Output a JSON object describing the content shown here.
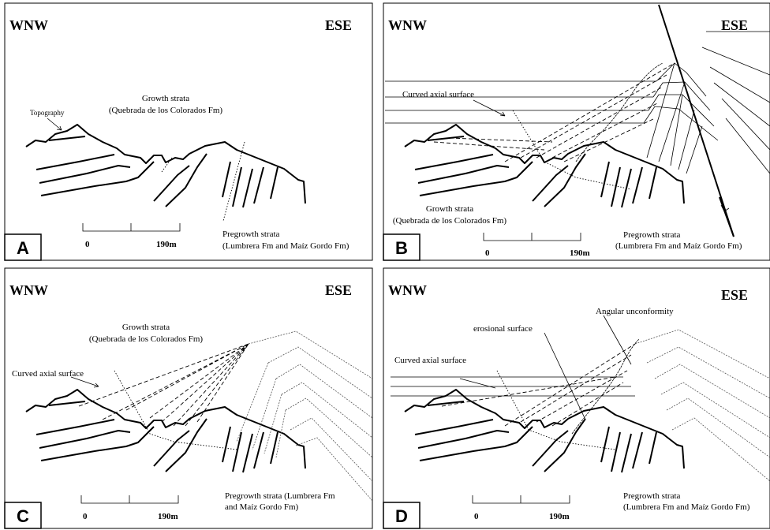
{
  "panels": [
    {
      "letter": "A",
      "west": "WNW",
      "east": "ESE",
      "growth": "Growth strata",
      "growth_fm": "(Quebrada de los Colorados Fm)",
      "topography": "Topography",
      "scale_start": "0",
      "scale_end": "190m",
      "pregrowth": "Pregrowth strata",
      "pregrowth_fm": "(Lumbrera Fm and Maíz Gordo Fm)"
    },
    {
      "letter": "B",
      "west": "WNW",
      "east": "ESE",
      "axial": "Curved axial surface",
      "growth": "Growth strata",
      "growth_fm": "(Quebrada de los Colorados Fm)",
      "scale_start": "0",
      "scale_end": "190m",
      "pregrowth": "Pregrowth strata",
      "pregrowth_fm": "(Lumbrera Fm and Maíz Gordo Fm)"
    },
    {
      "letter": "C",
      "west": "WNW",
      "east": "ESE",
      "growth": "Growth strata",
      "growth_fm": "(Quebrada de los Colorados Fm)",
      "axial": "Curved axial surface",
      "scale_start": "0",
      "scale_end": "190m",
      "pregrowth": "Pregrowth strata (Lumbrera Fm",
      "pregrowth_fm": "and Maíz Gordo Fm)"
    },
    {
      "letter": "D",
      "west": "WNW",
      "east": "ESE",
      "unconformity": "Angular unconformity",
      "erosional": "erosional surface",
      "axial": "Curved axial surface",
      "scale_start": "0",
      "scale_end": "190m",
      "pregrowth": "Pregrowth strata",
      "pregrowth_fm": "(Lumbrera Fm and Maíz Gordo Fm)"
    }
  ]
}
